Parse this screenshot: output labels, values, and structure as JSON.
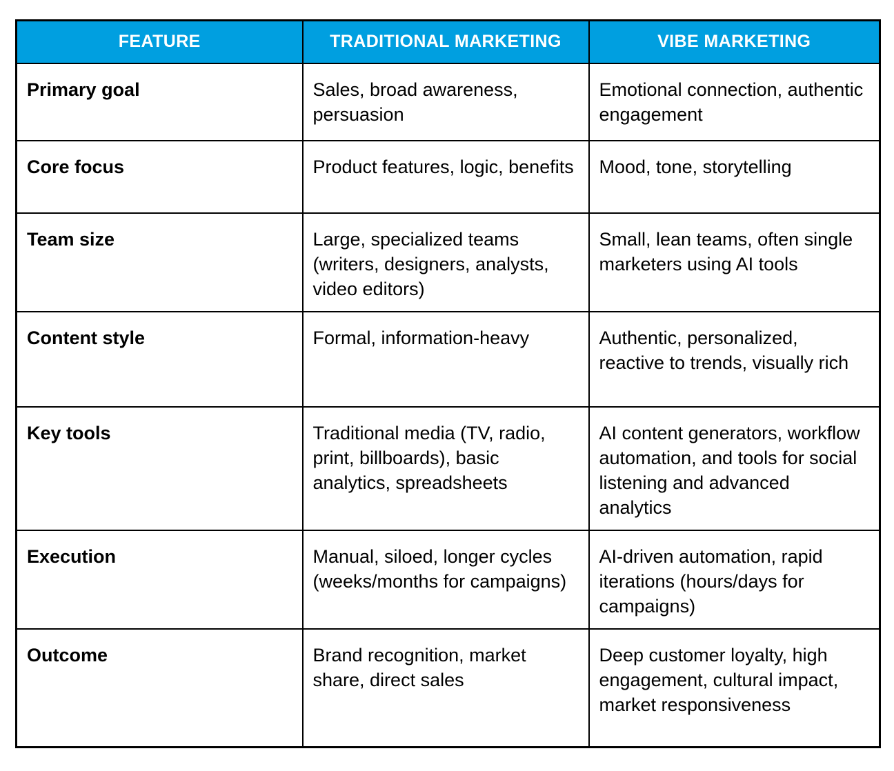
{
  "table": {
    "headers": [
      {
        "label": "FEATURE"
      },
      {
        "label": "TRADITIONAL MARKETING"
      },
      {
        "label": "VIBE MARKETING"
      }
    ],
    "rows": [
      {
        "feature": "Primary goal",
        "traditional": "Sales, broad awareness, persuasion",
        "vibe": "Emotional connection, authentic engagement"
      },
      {
        "feature": "Core focus",
        "traditional": "Product features, logic, benefits",
        "vibe": "Mood, tone, storytelling"
      },
      {
        "feature": "Team size",
        "traditional": "Large, specialized teams (writers, designers, analysts, video editors)",
        "vibe": "Small, lean teams, often single marketers using AI tools"
      },
      {
        "feature": "Content style",
        "traditional": "Formal, information-heavy",
        "vibe": "Authentic, personalized, reactive to trends, visually rich"
      },
      {
        "feature": "Key tools",
        "traditional": "Traditional media (TV, radio, print, billboards), basic analytics, spreadsheets",
        "vibe": "AI content generators, workflow automation, and tools for social listening and advanced analytics"
      },
      {
        "feature": "Execution",
        "traditional": "Manual, siloed, longer cycles (weeks/months for campaigns)",
        "vibe": "AI-driven automation, rapid iterations (hours/days for campaigns)"
      },
      {
        "feature": "Outcome",
        "traditional": "Brand recognition, market share, direct sales",
        "vibe": "Deep customer loyalty, high engagement, cultural impact, market responsiveness"
      }
    ]
  },
  "colors": {
    "header_bg": "#009FE0",
    "header_text": "#FFFFFF",
    "border": "#000000",
    "text": "#000000"
  }
}
